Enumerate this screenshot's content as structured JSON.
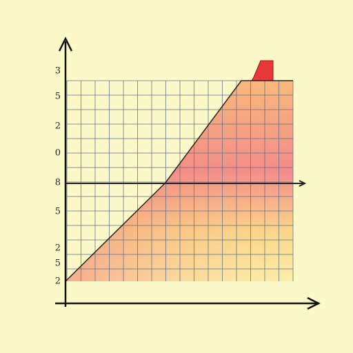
{
  "y_axis_labels": [
    "3",
    "5",
    "2",
    "0",
    "8",
    "5",
    "2",
    "5",
    "2"
  ]
}
